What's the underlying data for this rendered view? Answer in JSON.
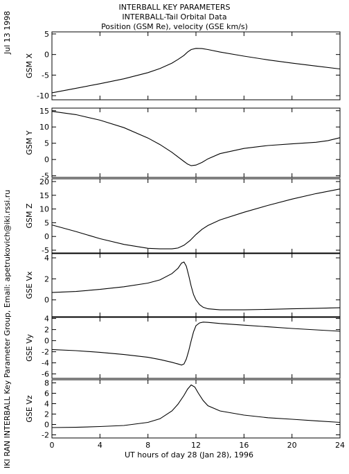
{
  "header": {
    "title": "INTERBALL KEY PARAMETERS",
    "subtitle": "INTERBALL-Tail Orbital Data",
    "subtitle2": "Position (GSM Re), velocity (GSE km/s)"
  },
  "side": {
    "date": "Jul 13 1998",
    "credit": "IKI RAN INTERBALL Key Parameter Group, Email: apetrukovich@iki.rssi.ru"
  },
  "chart_data": {
    "type": "line",
    "xlabel": "UT hours of day  28 (Jan 28), 1996",
    "xlim": [
      0,
      24
    ],
    "xticks": [
      0,
      4,
      8,
      12,
      16,
      20,
      24
    ],
    "panels": [
      {
        "ylabel": "GSM X",
        "ylim": [
          -11,
          5.5
        ],
        "yticks": [
          5,
          0,
          -5,
          -10
        ],
        "x": [
          0,
          2,
          4,
          6,
          8,
          9,
          10,
          10.5,
          11,
          11.3,
          11.6,
          12,
          12.5,
          13,
          14,
          16,
          18,
          20,
          22,
          24
        ],
        "y": [
          -9.3,
          -8.2,
          -7.1,
          -5.9,
          -4.4,
          -3.4,
          -2.1,
          -1.2,
          -0.2,
          0.6,
          1.2,
          1.5,
          1.45,
          1.2,
          0.6,
          -0.4,
          -1.3,
          -2.1,
          -2.8,
          -3.5
        ]
      },
      {
        "ylabel": "GSM Y",
        "ylim": [
          -5.5,
          15.8
        ],
        "yticks": [
          15,
          10,
          5,
          0,
          -5
        ],
        "x": [
          0,
          2,
          4,
          6,
          8,
          9,
          10,
          10.5,
          11,
          11.3,
          11.6,
          12,
          12.5,
          13,
          14,
          16,
          18,
          20,
          22,
          23,
          24
        ],
        "y": [
          14.8,
          13.8,
          12.1,
          9.8,
          6.6,
          4.6,
          2.2,
          0.8,
          -0.6,
          -1.4,
          -1.9,
          -1.7,
          -0.9,
          0.2,
          1.8,
          3.4,
          4.3,
          4.8,
          5.3,
          5.8,
          6.7
        ]
      },
      {
        "ylabel": "GSM Z",
        "ylim": [
          -6,
          21
        ],
        "yticks": [
          20,
          15,
          10,
          5,
          0,
          -5
        ],
        "x": [
          0,
          2,
          4,
          6,
          8,
          9,
          10,
          10.5,
          11,
          11.5,
          12,
          12.5,
          13,
          14,
          16,
          18,
          20,
          22,
          24
        ],
        "y": [
          4.2,
          1.8,
          -0.8,
          -2.9,
          -4.3,
          -4.5,
          -4.5,
          -4.2,
          -3.2,
          -1.5,
          0.7,
          2.6,
          4.0,
          6.0,
          8.8,
          11.3,
          13.6,
          15.6,
          17.3
        ]
      },
      {
        "ylabel": "GSE Vx",
        "ylim": [
          -1.6,
          4.4
        ],
        "yticks": [
          4,
          2,
          0
        ],
        "x": [
          0,
          2,
          4,
          6,
          8,
          9,
          10,
          10.5,
          10.8,
          11.0,
          11.2,
          11.4,
          11.6,
          11.8,
          12,
          12.3,
          12.6,
          13,
          14,
          16,
          18,
          20,
          22,
          24
        ],
        "y": [
          0.7,
          0.8,
          1.0,
          1.25,
          1.6,
          1.9,
          2.5,
          3.0,
          3.5,
          3.6,
          3.2,
          2.3,
          1.3,
          0.5,
          0.0,
          -0.45,
          -0.7,
          -0.85,
          -0.95,
          -0.95,
          -0.9,
          -0.85,
          -0.8,
          -0.75
        ]
      },
      {
        "ylabel": "GSE Vy",
        "ylim": [
          -6.8,
          4.2
        ],
        "yticks": [
          4,
          2,
          0,
          -2,
          -4,
          -6
        ],
        "x": [
          0,
          2,
          4,
          6,
          8,
          9,
          10,
          10.5,
          10.8,
          11.0,
          11.2,
          11.4,
          11.6,
          11.8,
          12,
          12.3,
          12.6,
          13,
          14,
          16,
          18,
          20,
          22,
          24
        ],
        "y": [
          -1.6,
          -1.8,
          -2.1,
          -2.5,
          -3.0,
          -3.4,
          -3.9,
          -4.2,
          -4.4,
          -4.2,
          -3.3,
          -1.8,
          0.0,
          1.6,
          2.7,
          3.2,
          3.35,
          3.3,
          3.1,
          2.8,
          2.5,
          2.2,
          1.95,
          1.7
        ]
      },
      {
        "ylabel": "GSE Vz",
        "ylim": [
          -2.6,
          8.6
        ],
        "yticks": [
          8,
          6,
          4,
          2,
          0,
          -2
        ],
        "x": [
          0,
          2,
          4,
          6,
          8,
          9,
          10,
          10.5,
          11,
          11.3,
          11.6,
          11.9,
          12.2,
          12.6,
          13,
          14,
          16,
          18,
          20,
          22,
          24
        ],
        "y": [
          -0.6,
          -0.55,
          -0.4,
          -0.2,
          0.4,
          1.1,
          2.6,
          3.9,
          5.6,
          6.8,
          7.6,
          7.2,
          6.0,
          4.6,
          3.6,
          2.6,
          1.8,
          1.3,
          1.0,
          0.7,
          0.4
        ]
      }
    ]
  }
}
